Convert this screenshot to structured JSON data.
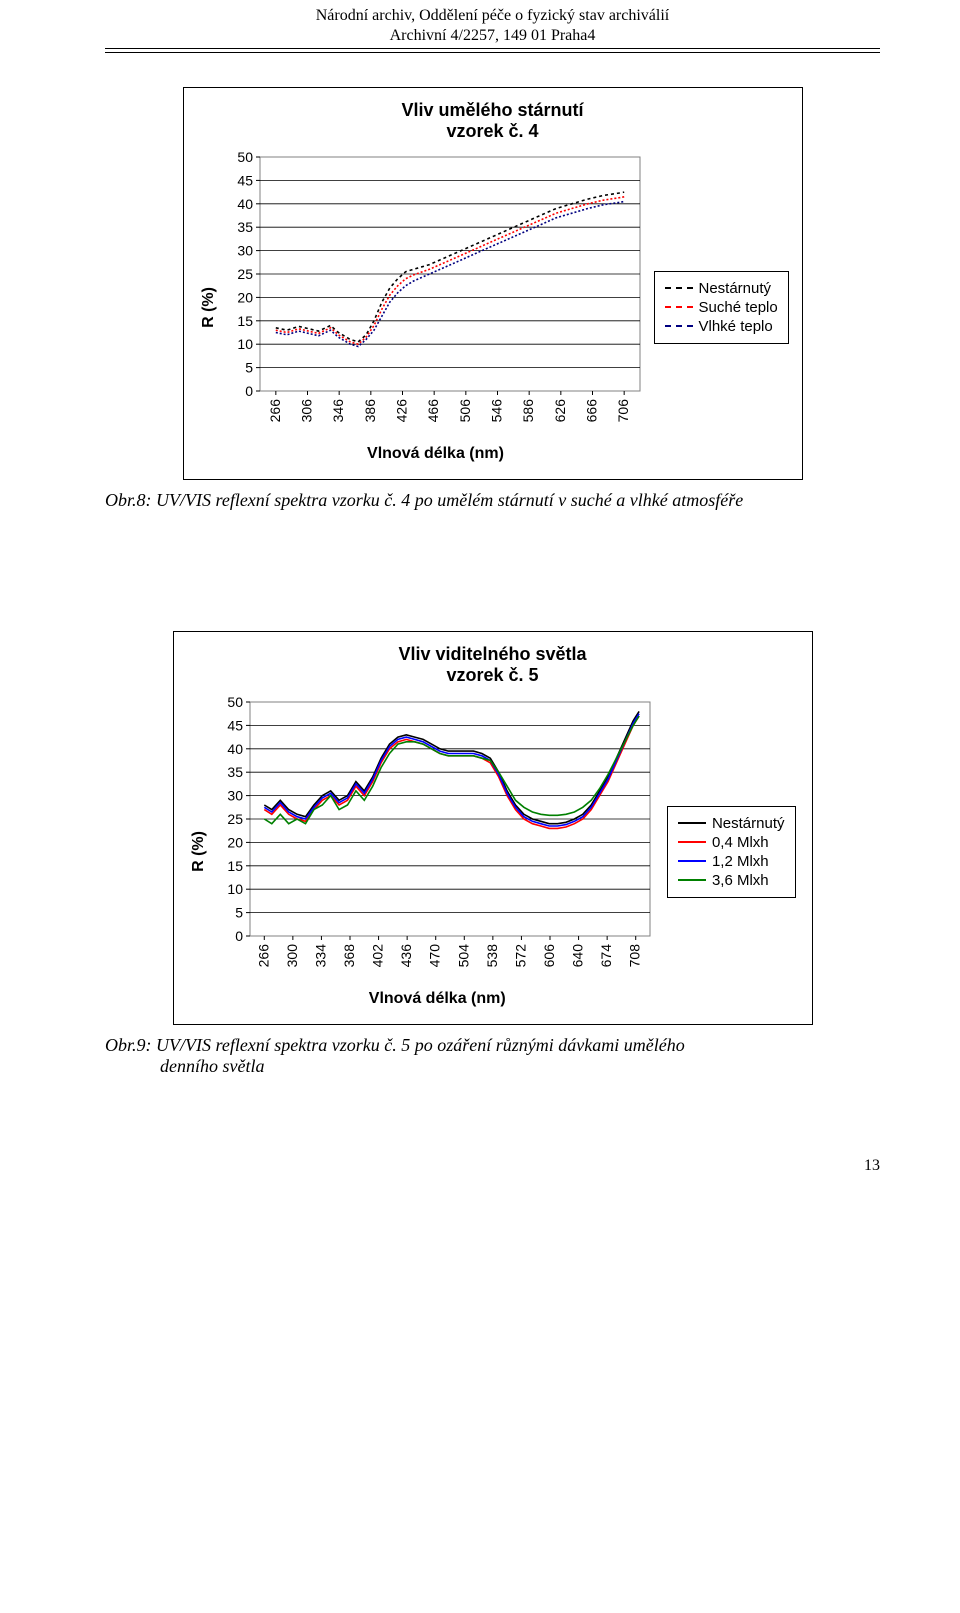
{
  "header": {
    "line1": "Národní archiv, Oddělení péče o fyzický stav archiválií",
    "line2": "Archivní 4/2257, 149 01 Praha4"
  },
  "chart1": {
    "title_l1": "Vliv umělého stárnutí",
    "title_l2": "vzorek č. 4",
    "ylabel": "R (%)",
    "xlabel": "Vlnová délka (nm)",
    "ylim": [
      0,
      50
    ],
    "ytick_step": 5,
    "x_ticks": [
      266,
      306,
      346,
      386,
      426,
      466,
      506,
      546,
      586,
      626,
      666,
      706
    ],
    "series": [
      {
        "name": "Nestárnutý",
        "color": "#000000",
        "dash": "3,3",
        "values": [
          [
            266,
            13.5
          ],
          [
            280,
            13
          ],
          [
            295,
            13.8
          ],
          [
            310,
            13.2
          ],
          [
            320,
            12.8
          ],
          [
            335,
            14
          ],
          [
            345,
            12.5
          ],
          [
            360,
            11
          ],
          [
            370,
            10.5
          ],
          [
            380,
            12
          ],
          [
            390,
            15
          ],
          [
            400,
            19
          ],
          [
            410,
            22
          ],
          [
            420,
            24
          ],
          [
            430,
            25.5
          ],
          [
            440,
            26
          ],
          [
            460,
            27
          ],
          [
            480,
            28.5
          ],
          [
            500,
            30
          ],
          [
            520,
            31.5
          ],
          [
            540,
            33
          ],
          [
            560,
            34.5
          ],
          [
            580,
            36
          ],
          [
            600,
            37.5
          ],
          [
            620,
            39
          ],
          [
            640,
            40
          ],
          [
            660,
            41
          ],
          [
            680,
            41.8
          ],
          [
            700,
            42.3
          ],
          [
            706,
            42.5
          ]
        ]
      },
      {
        "name": "Suché teplo",
        "color": "#ff0000",
        "dash": "2,2",
        "values": [
          [
            266,
            13
          ],
          [
            280,
            12.5
          ],
          [
            295,
            13.3
          ],
          [
            310,
            12.7
          ],
          [
            320,
            12.3
          ],
          [
            335,
            13.5
          ],
          [
            345,
            12
          ],
          [
            360,
            10.5
          ],
          [
            370,
            10
          ],
          [
            380,
            11.5
          ],
          [
            390,
            14
          ],
          [
            400,
            17.5
          ],
          [
            410,
            20.5
          ],
          [
            420,
            22.5
          ],
          [
            430,
            24
          ],
          [
            440,
            24.8
          ],
          [
            460,
            26
          ],
          [
            480,
            27.5
          ],
          [
            500,
            29
          ],
          [
            520,
            30.5
          ],
          [
            540,
            32
          ],
          [
            560,
            33.5
          ],
          [
            580,
            35
          ],
          [
            600,
            36.5
          ],
          [
            620,
            38
          ],
          [
            640,
            39
          ],
          [
            660,
            40
          ],
          [
            680,
            40.8
          ],
          [
            700,
            41.3
          ],
          [
            706,
            41.5
          ]
        ]
      },
      {
        "name": "Vlhké teplo",
        "color": "#000080",
        "dash": "2,2",
        "values": [
          [
            266,
            12.5
          ],
          [
            280,
            12
          ],
          [
            295,
            12.8
          ],
          [
            310,
            12.2
          ],
          [
            320,
            11.8
          ],
          [
            335,
            13
          ],
          [
            345,
            11.5
          ],
          [
            360,
            10
          ],
          [
            370,
            9.5
          ],
          [
            380,
            11
          ],
          [
            390,
            13
          ],
          [
            400,
            16
          ],
          [
            410,
            19
          ],
          [
            420,
            21
          ],
          [
            430,
            22.5
          ],
          [
            440,
            23.5
          ],
          [
            460,
            25
          ],
          [
            480,
            26.5
          ],
          [
            500,
            28
          ],
          [
            520,
            29.5
          ],
          [
            540,
            31
          ],
          [
            560,
            32.5
          ],
          [
            580,
            34
          ],
          [
            600,
            35.5
          ],
          [
            620,
            37
          ],
          [
            640,
            38
          ],
          [
            660,
            39
          ],
          [
            680,
            39.8
          ],
          [
            700,
            40.3
          ],
          [
            706,
            40.5
          ]
        ]
      }
    ],
    "legend": [
      {
        "label": "Nestárnutý",
        "color": "#000000",
        "dash": "3,3"
      },
      {
        "label": "Suché teplo",
        "color": "#ff0000",
        "dash": "2,2"
      },
      {
        "label": "Vlhké teplo",
        "color": "#000080",
        "dash": "2,2"
      }
    ]
  },
  "caption1": "Obr.8: UV/VIS reflexní spektra vzorku č. 4 po umělém stárnutí v suché a vlhké atmosféře",
  "chart2": {
    "title_l1": "Vliv viditelného světla",
    "title_l2": "vzorek č. 5",
    "ylabel": "R (%)",
    "xlabel": "Vlnová délka (nm)",
    "ylim": [
      0,
      50
    ],
    "ytick_step": 5,
    "x_ticks": [
      266,
      300,
      334,
      368,
      402,
      436,
      470,
      504,
      538,
      572,
      606,
      640,
      674,
      708
    ],
    "series": [
      {
        "name": "Nestárnutý",
        "color": "#000000",
        "dash": "",
        "values": [
          [
            266,
            28
          ],
          [
            275,
            27
          ],
          [
            285,
            29
          ],
          [
            295,
            27
          ],
          [
            305,
            26
          ],
          [
            315,
            25.5
          ],
          [
            325,
            28
          ],
          [
            335,
            30
          ],
          [
            345,
            31
          ],
          [
            355,
            29
          ],
          [
            365,
            30
          ],
          [
            375,
            33
          ],
          [
            385,
            31
          ],
          [
            395,
            34
          ],
          [
            405,
            38
          ],
          [
            415,
            41
          ],
          [
            425,
            42.5
          ],
          [
            435,
            43
          ],
          [
            445,
            42.5
          ],
          [
            455,
            42
          ],
          [
            465,
            41
          ],
          [
            475,
            40
          ],
          [
            485,
            39.5
          ],
          [
            495,
            39.5
          ],
          [
            505,
            39.5
          ],
          [
            515,
            39.5
          ],
          [
            525,
            39
          ],
          [
            535,
            38
          ],
          [
            545,
            35
          ],
          [
            555,
            31
          ],
          [
            565,
            28
          ],
          [
            575,
            26
          ],
          [
            585,
            25
          ],
          [
            595,
            24.5
          ],
          [
            605,
            24
          ],
          [
            615,
            24
          ],
          [
            625,
            24.3
          ],
          [
            635,
            25
          ],
          [
            645,
            26
          ],
          [
            655,
            28
          ],
          [
            665,
            31
          ],
          [
            675,
            34
          ],
          [
            685,
            38
          ],
          [
            695,
            42
          ],
          [
            705,
            46
          ],
          [
            712,
            48
          ]
        ]
      },
      {
        "name": "0,4 Mlxh",
        "color": "#ff0000",
        "dash": "",
        "values": [
          [
            266,
            27
          ],
          [
            275,
            26
          ],
          [
            285,
            28
          ],
          [
            295,
            26
          ],
          [
            305,
            25
          ],
          [
            315,
            24.5
          ],
          [
            325,
            27
          ],
          [
            335,
            29
          ],
          [
            345,
            30
          ],
          [
            355,
            28
          ],
          [
            365,
            29
          ],
          [
            375,
            32
          ],
          [
            385,
            30
          ],
          [
            395,
            33
          ],
          [
            405,
            37
          ],
          [
            415,
            40
          ],
          [
            425,
            41.5
          ],
          [
            435,
            42
          ],
          [
            445,
            41.5
          ],
          [
            455,
            41
          ],
          [
            465,
            40
          ],
          [
            475,
            39
          ],
          [
            485,
            38.5
          ],
          [
            495,
            38.5
          ],
          [
            505,
            38.5
          ],
          [
            515,
            38.5
          ],
          [
            525,
            38
          ],
          [
            535,
            37
          ],
          [
            545,
            34
          ],
          [
            555,
            30
          ],
          [
            565,
            27
          ],
          [
            575,
            25
          ],
          [
            585,
            24
          ],
          [
            595,
            23.5
          ],
          [
            605,
            23
          ],
          [
            615,
            23
          ],
          [
            625,
            23.3
          ],
          [
            635,
            24
          ],
          [
            645,
            25
          ],
          [
            655,
            27
          ],
          [
            665,
            30
          ],
          [
            675,
            33
          ],
          [
            685,
            37
          ],
          [
            695,
            41
          ],
          [
            705,
            45
          ],
          [
            712,
            47
          ]
        ]
      },
      {
        "name": "1,2 Mlxh",
        "color": "#0000ff",
        "dash": "",
        "values": [
          [
            266,
            27.5
          ],
          [
            275,
            26.5
          ],
          [
            285,
            28.5
          ],
          [
            295,
            26.5
          ],
          [
            305,
            25.5
          ],
          [
            315,
            25
          ],
          [
            325,
            27.5
          ],
          [
            335,
            29.5
          ],
          [
            345,
            30.5
          ],
          [
            355,
            28.5
          ],
          [
            365,
            29.5
          ],
          [
            375,
            32.5
          ],
          [
            385,
            30.5
          ],
          [
            395,
            33.5
          ],
          [
            405,
            37.5
          ],
          [
            415,
            40.5
          ],
          [
            425,
            42
          ],
          [
            435,
            42.5
          ],
          [
            445,
            42
          ],
          [
            455,
            41.5
          ],
          [
            465,
            40.5
          ],
          [
            475,
            39.5
          ],
          [
            485,
            39
          ],
          [
            495,
            39
          ],
          [
            505,
            39
          ],
          [
            515,
            39
          ],
          [
            525,
            38.5
          ],
          [
            535,
            37.5
          ],
          [
            545,
            34.5
          ],
          [
            555,
            30.5
          ],
          [
            565,
            27.5
          ],
          [
            575,
            25.5
          ],
          [
            585,
            24.5
          ],
          [
            595,
            24
          ],
          [
            605,
            23.5
          ],
          [
            615,
            23.5
          ],
          [
            625,
            23.8
          ],
          [
            635,
            24.5
          ],
          [
            645,
            25.5
          ],
          [
            655,
            27.5
          ],
          [
            665,
            30.5
          ],
          [
            675,
            33.5
          ],
          [
            685,
            37.5
          ],
          [
            695,
            41.5
          ],
          [
            705,
            45.5
          ],
          [
            712,
            47.5
          ]
        ]
      },
      {
        "name": "3,6 Mlxh",
        "color": "#008000",
        "dash": "",
        "values": [
          [
            266,
            25
          ],
          [
            275,
            24
          ],
          [
            285,
            26
          ],
          [
            295,
            24
          ],
          [
            305,
            25
          ],
          [
            315,
            24
          ],
          [
            325,
            27
          ],
          [
            335,
            28
          ],
          [
            345,
            30
          ],
          [
            355,
            27
          ],
          [
            365,
            28
          ],
          [
            375,
            31
          ],
          [
            385,
            29
          ],
          [
            395,
            32
          ],
          [
            405,
            36
          ],
          [
            415,
            39
          ],
          [
            425,
            41
          ],
          [
            435,
            41.5
          ],
          [
            445,
            41.5
          ],
          [
            455,
            41
          ],
          [
            465,
            40
          ],
          [
            475,
            39
          ],
          [
            485,
            38.5
          ],
          [
            495,
            38.5
          ],
          [
            505,
            38.5
          ],
          [
            515,
            38.5
          ],
          [
            525,
            38
          ],
          [
            535,
            37.5
          ],
          [
            545,
            35
          ],
          [
            555,
            32
          ],
          [
            565,
            29
          ],
          [
            575,
            27.5
          ],
          [
            585,
            26.5
          ],
          [
            595,
            26
          ],
          [
            605,
            25.8
          ],
          [
            615,
            25.8
          ],
          [
            625,
            26
          ],
          [
            635,
            26.5
          ],
          [
            645,
            27.5
          ],
          [
            655,
            29
          ],
          [
            665,
            31.5
          ],
          [
            675,
            34.5
          ],
          [
            685,
            38
          ],
          [
            695,
            41.5
          ],
          [
            705,
            45
          ],
          [
            712,
            47
          ]
        ]
      }
    ],
    "legend": [
      {
        "label": "Nestárnutý",
        "color": "#000000",
        "dash": ""
      },
      {
        "label": "0,4 Mlxh",
        "color": "#ff0000",
        "dash": ""
      },
      {
        "label": "1,2 Mlxh",
        "color": "#0000ff",
        "dash": ""
      },
      {
        "label": "3,6 Mlxh",
        "color": "#008000",
        "dash": ""
      }
    ]
  },
  "caption2_l1": "Obr.9: UV/VIS reflexní spektra vzorku č. 5 po ozáření různými dávkami umělého",
  "caption2_l2": "denního světla",
  "page_number": "13"
}
